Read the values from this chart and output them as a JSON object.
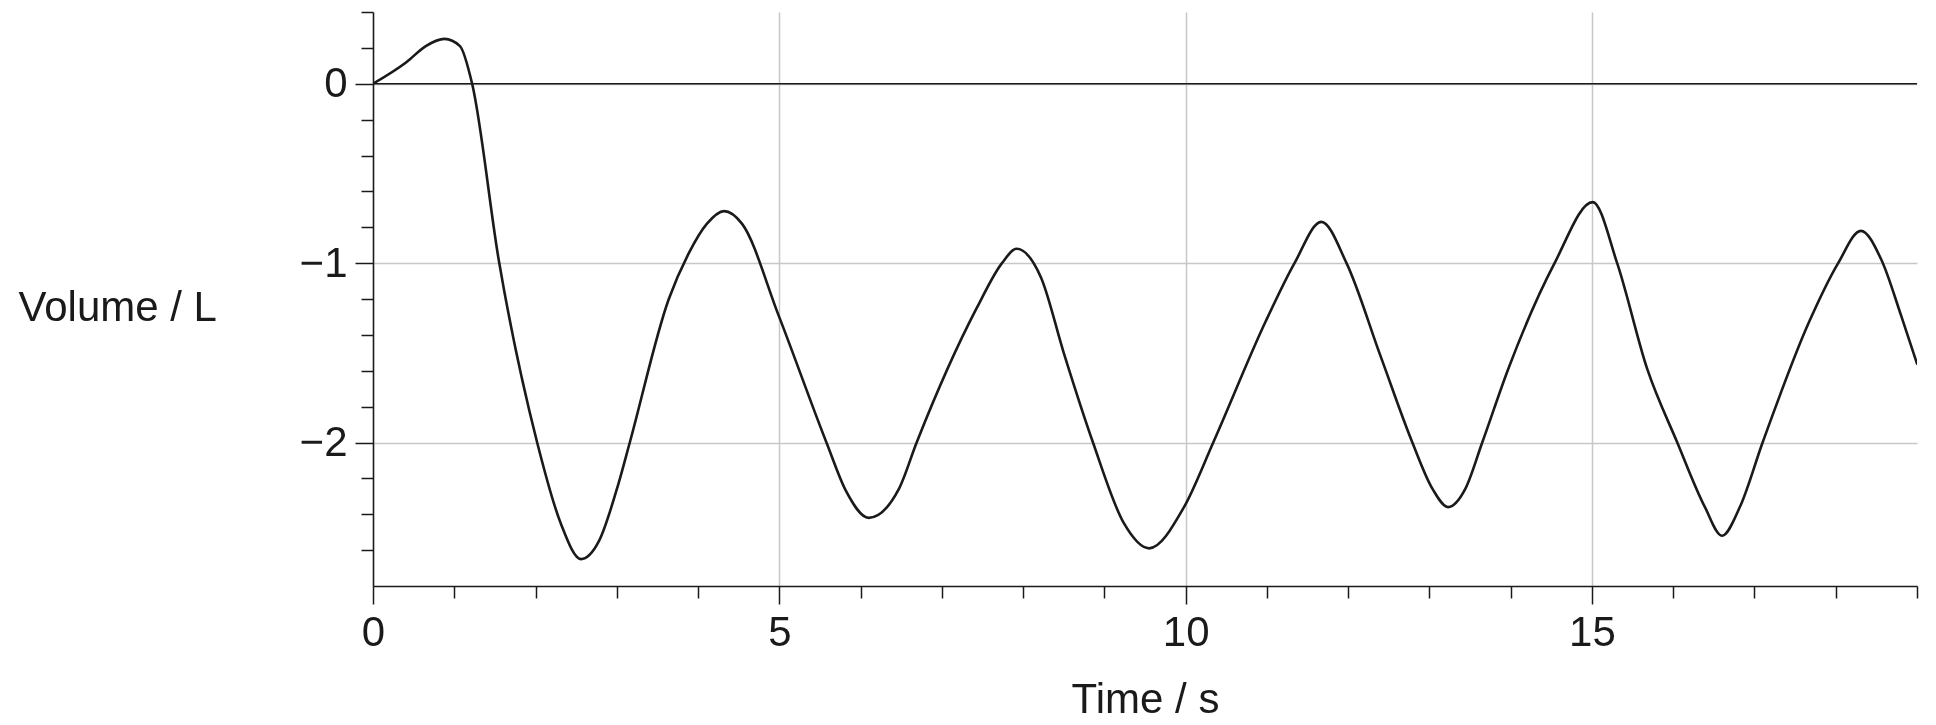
{
  "chart_data": {
    "type": "line",
    "xlabel": "Time / s",
    "ylabel": "Volume / L",
    "x": [
      0,
      0.41,
      0.65,
      0.88,
      1.07,
      1.22,
      1.55,
      2.02,
      2.31,
      2.56,
      2.78,
      3.02,
      3.16,
      3.64,
      3.88,
      4.11,
      4.32,
      4.54,
      4.99,
      5.58,
      5.82,
      6.1,
      6.47,
      6.69,
      7.43,
      7.74,
      7.92,
      8.22,
      8.5,
      8.86,
      9.24,
      9.55,
      9.98,
      10.34,
      10.98,
      11.34,
      11.67,
      11.98,
      12.4,
      12.79,
      13.04,
      13.23,
      13.44,
      13.65,
      13.97,
      14.54,
      15.01,
      15.31,
      15.68,
      16.05,
      16.39,
      16.6,
      16.82,
      17.1,
      17.67,
      18.03,
      18.31,
      18.56,
      18.81,
      19.0
    ],
    "series": [
      {
        "color": "#1a1a1a",
        "values": [
          0,
          0.12,
          0.21,
          0.25,
          0.21,
          0,
          -0.99,
          -2,
          -2.45,
          -2.65,
          -2.55,
          -2.23,
          -2,
          -1.2,
          -0.95,
          -0.78,
          -0.71,
          -0.78,
          -1.29,
          -2,
          -2.27,
          -2.42,
          -2.26,
          -2,
          -1.25,
          -1,
          -0.92,
          -1.08,
          -1.5,
          -2,
          -2.45,
          -2.59,
          -2.36,
          -2,
          -1.33,
          -1,
          -0.77,
          -1,
          -1.52,
          -2,
          -2.26,
          -2.36,
          -2.26,
          -2,
          -1.59,
          -1,
          -0.66,
          -1,
          -1.59,
          -2,
          -2.36,
          -2.52,
          -2.36,
          -2,
          -1.33,
          -1,
          -0.82,
          -0.98,
          -1.3,
          -1.56
        ]
      }
    ],
    "xlim": [
      0,
      19
    ],
    "ylim": [
      -2.8,
      0.4
    ],
    "xticks": [
      0,
      {
        "value": 1,
        "label": null
      },
      {
        "value": 2,
        "label": null
      },
      {
        "value": 3,
        "label": null
      },
      {
        "value": 4,
        "label": null
      },
      5,
      {
        "value": 6,
        "label": null
      },
      {
        "value": 7,
        "label": null
      },
      {
        "value": 8,
        "label": null
      },
      {
        "value": 9,
        "label": null
      },
      10,
      {
        "value": 11,
        "label": null
      },
      {
        "value": 12,
        "label": null
      },
      {
        "value": 13,
        "label": null
      },
      {
        "value": 14,
        "label": null
      },
      15,
      {
        "value": 16,
        "label": null
      },
      {
        "value": 17,
        "label": null
      },
      {
        "value": 18,
        "label": null
      },
      {
        "value": 19,
        "label": null
      }
    ],
    "yticks": [
      {
        "value": 0.4,
        "label": null
      },
      {
        "value": 0.2,
        "label": null
      },
      0,
      {
        "value": -0.2,
        "label": null
      },
      {
        "value": -0.4,
        "label": null
      },
      {
        "value": -0.6,
        "label": null
      },
      {
        "value": -0.8,
        "label": null
      },
      {
        "value": -1,
        "label": "−1"
      },
      {
        "value": -1.2,
        "label": null
      },
      {
        "value": -1.4,
        "label": null
      },
      {
        "value": -1.6,
        "label": null
      },
      {
        "value": -1.8,
        "label": null
      },
      {
        "value": -2,
        "label": "−2"
      },
      {
        "value": -2.2,
        "label": null
      },
      {
        "value": -2.4,
        "label": null
      },
      {
        "value": -2.6,
        "label": null
      }
    ],
    "grid": true,
    "ref_lines": [
      {
        "axis": "y",
        "value": 0,
        "color": "#1a1a1a"
      }
    ]
  }
}
